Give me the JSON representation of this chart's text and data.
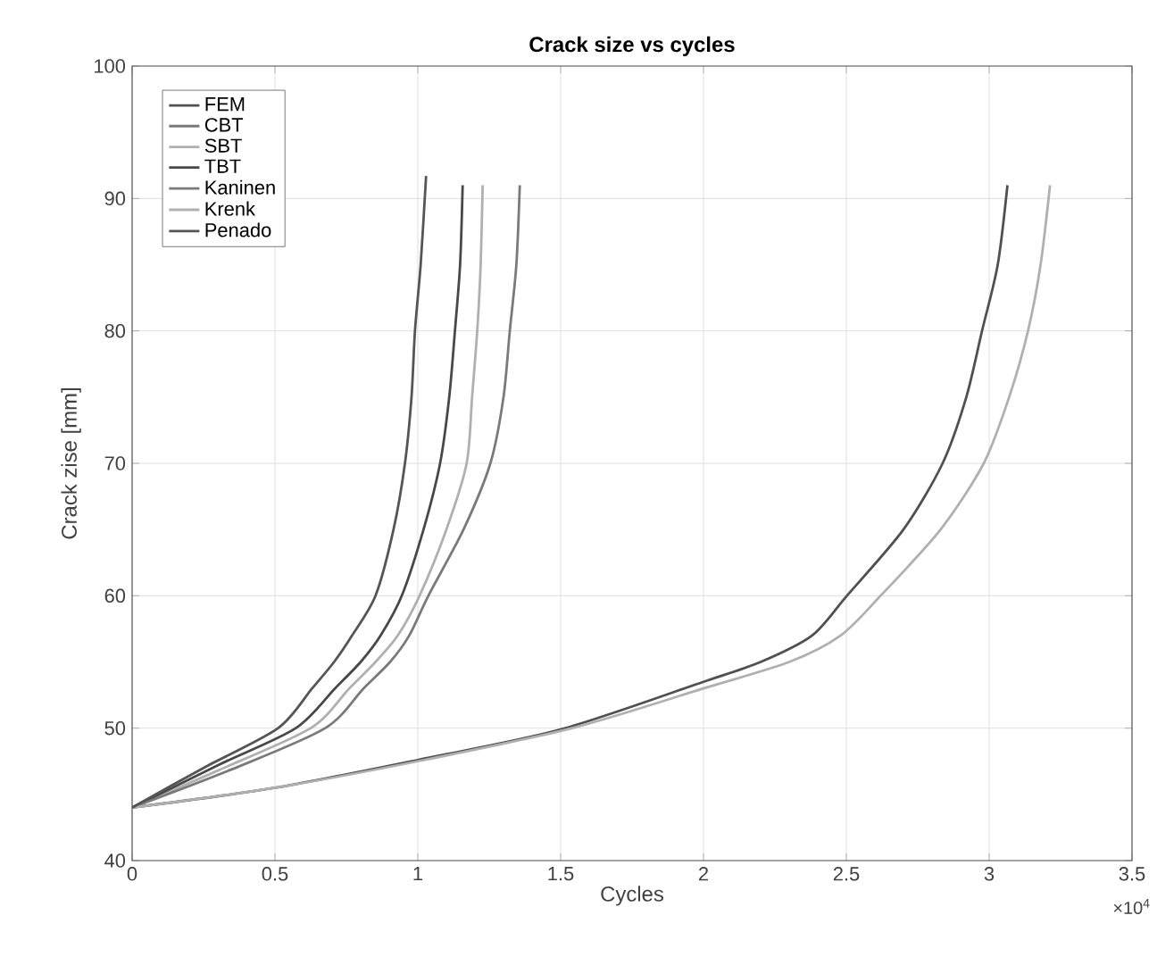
{
  "chart_data": {
    "type": "line",
    "title": "Crack size vs cycles",
    "xlabel": "Cycles",
    "ylabel": "Crack zise [mm]",
    "annotations": [
      "×10$^{4}$"
    ],
    "xlim": [
      0,
      3.5
    ],
    "xticks": [
      0,
      0.5,
      1,
      1.5,
      2,
      2.5,
      3,
      3.5
    ],
    "ylim": [
      40,
      100
    ],
    "yticks": [
      40,
      50,
      60,
      70,
      80,
      90,
      100
    ],
    "grid": true,
    "legend": "top left",
    "line_style": "solid",
    "series": [
      {
        "name": "FEM",
        "color": "#505050",
        "x": [
          0,
          0.5,
          1.0,
          1.5,
          2.0,
          2.2,
          2.38,
          2.502,
          2.7,
          2.837,
          2.92,
          2.975,
          3.03,
          3.064
        ],
        "values": [
          44,
          45.5,
          47.6,
          49.9,
          53.5,
          55,
          57,
          60,
          65,
          70,
          75,
          80,
          85,
          91
        ]
      },
      {
        "name": "CBT",
        "color": "#7a7a7a"
      },
      {
        "name": "SBT",
        "color": "#b0b0b0",
        "x": [
          0,
          0.3,
          0.625,
          0.76,
          0.852,
          0.93,
          1.006,
          1.1,
          1.171,
          1.19,
          1.208,
          1.22,
          1.227
        ],
        "values": [
          44,
          46.8,
          50,
          53,
          55,
          57,
          60,
          65,
          70,
          75,
          80,
          85,
          91
        ]
      },
      {
        "name": "TBT",
        "color": "#484848",
        "x": [
          0,
          0.3,
          0.573,
          0.71,
          0.8,
          0.87,
          0.944,
          1.02,
          1.078,
          1.11,
          1.13,
          1.148,
          1.157
        ],
        "values": [
          44,
          47.2,
          50,
          53,
          55,
          57,
          60,
          65,
          70,
          75,
          80,
          85,
          91
        ]
      },
      {
        "name": "Kaninen",
        "color": "#7a7a7a",
        "x": [
          0,
          0.35,
          0.676,
          0.81,
          0.903,
          0.97,
          1.037,
          1.16,
          1.254,
          1.3,
          1.322,
          1.345,
          1.357
        ],
        "values": [
          44,
          46.9,
          50,
          53,
          55,
          57,
          60,
          65,
          70,
          75,
          80,
          85,
          91
        ]
      },
      {
        "name": "Krenk",
        "color": "#b0b0b0",
        "x": [
          0,
          0.5,
          1.0,
          1.54,
          2.0,
          2.3,
          2.48,
          2.62,
          2.83,
          2.981,
          3.07,
          3.136,
          3.18,
          3.213
        ],
        "values": [
          44,
          45.5,
          47.5,
          50,
          53.0,
          55,
          57,
          60,
          65,
          70,
          75,
          80,
          85,
          91
        ]
      },
      {
        "name": "Penado",
        "color": "#555555",
        "x": [
          0,
          0.25,
          0.511,
          0.63,
          0.707,
          0.77,
          0.852,
          0.915,
          0.955,
          0.978,
          0.99,
          1.01,
          1.029
        ],
        "values": [
          44,
          47,
          50,
          53,
          55,
          57,
          60,
          65,
          70,
          75,
          80,
          85,
          91.7
        ]
      }
    ]
  }
}
